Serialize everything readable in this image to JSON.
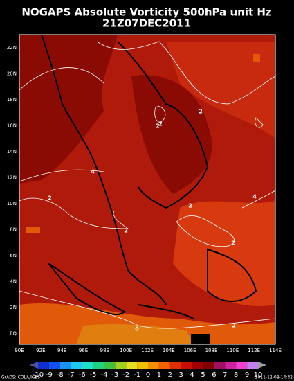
{
  "header": {
    "title": "NOGAPS Absolute Vorticity 500hPa unit Hz",
    "subtitle": "21Z07DEC2011"
  },
  "map": {
    "lat_labels": [
      "22N",
      "20N",
      "18N",
      "16N",
      "14N",
      "12N",
      "10N",
      "8N",
      "6N",
      "4N",
      "2N",
      "EQ"
    ],
    "lon_labels": [
      "90E",
      "92E",
      "94E",
      "96E",
      "98E",
      "100E",
      "102E",
      "104E",
      "106E",
      "108E",
      "110E",
      "112E",
      "114E"
    ],
    "contour_labels": [
      "2",
      "2",
      "4",
      "2",
      "2",
      "2",
      "4",
      "2",
      "2",
      "0",
      "2"
    ]
  },
  "colorbar": {
    "labels": [
      "-10",
      "-9",
      "-8",
      "-7",
      "-6",
      "-5",
      "-4",
      "-3",
      "-2",
      "-1",
      "0",
      "1",
      "2",
      "3",
      "4",
      "5",
      "6",
      "7",
      "8",
      "9",
      "10"
    ]
  },
  "footer": {
    "left": "GrADS: COLA/IGES",
    "right": "2011-12-08-14:32"
  }
}
